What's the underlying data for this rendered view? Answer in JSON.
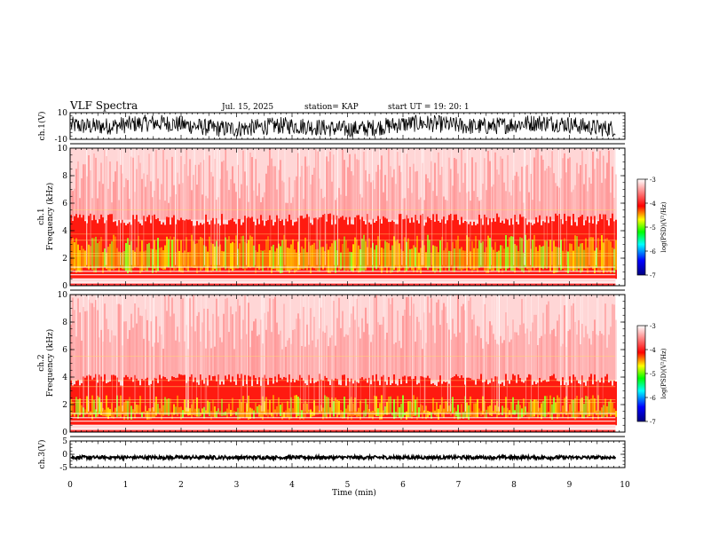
{
  "header": {
    "title": "VLF Spectra",
    "date": "Jul. 15, 2025",
    "station": "station= KAP",
    "start": "start  UT =   19: 20: 1"
  },
  "chart_data": {
    "type": "heatmap",
    "title": "VLF Spectra",
    "xlabel": "Time  (min)",
    "xlim": [
      0,
      10
    ],
    "x_ticks": [
      "0",
      "1",
      "2",
      "3",
      "4",
      "5",
      "6",
      "7",
      "8",
      "9",
      "10"
    ],
    "panels": [
      {
        "id": "ch1-waveform",
        "type": "line",
        "ylabel": "ch.1(V)",
        "ylim": [
          -10,
          10
        ],
        "y_ticks": [
          "10",
          "-10"
        ],
        "data_end_min": 9.83
      },
      {
        "id": "ch1-spectrogram",
        "type": "heatmap",
        "ylabel": "ch.1\nFrequency  (kHz)",
        "ylim": [
          0,
          10
        ],
        "y_ticks": [
          "0",
          "2",
          "4",
          "6",
          "8",
          "10"
        ],
        "strong_band_khz": [
          0.5,
          4.8
        ],
        "data_end_min": 9.83
      },
      {
        "id": "ch2-spectrogram",
        "type": "heatmap",
        "ylabel": "ch.2\nFrequency  (kHz)",
        "ylim": [
          0,
          10
        ],
        "y_ticks": [
          "0",
          "2",
          "4",
          "6",
          "8",
          "10"
        ],
        "strong_band_khz": [
          0.5,
          3.8
        ],
        "data_end_min": 9.83
      },
      {
        "id": "ch3-waveform",
        "type": "line",
        "ylabel": "ch.3(V)",
        "ylim": [
          -5,
          5
        ],
        "y_ticks": [
          "5",
          "0",
          "-5"
        ],
        "level_v": -1.2,
        "data_end_min": 9.83
      }
    ],
    "colorbar": {
      "label": "log(PSD)(V²/Hz)",
      "range": [
        -7,
        -3
      ],
      "ticks": [
        "-3",
        "-4",
        "-5",
        "-6",
        "-7"
      ],
      "colors": [
        "#000080",
        "#0000ff",
        "#00ffff",
        "#00ff00",
        "#ffff00",
        "#ff0000",
        "#ffffff"
      ]
    }
  }
}
